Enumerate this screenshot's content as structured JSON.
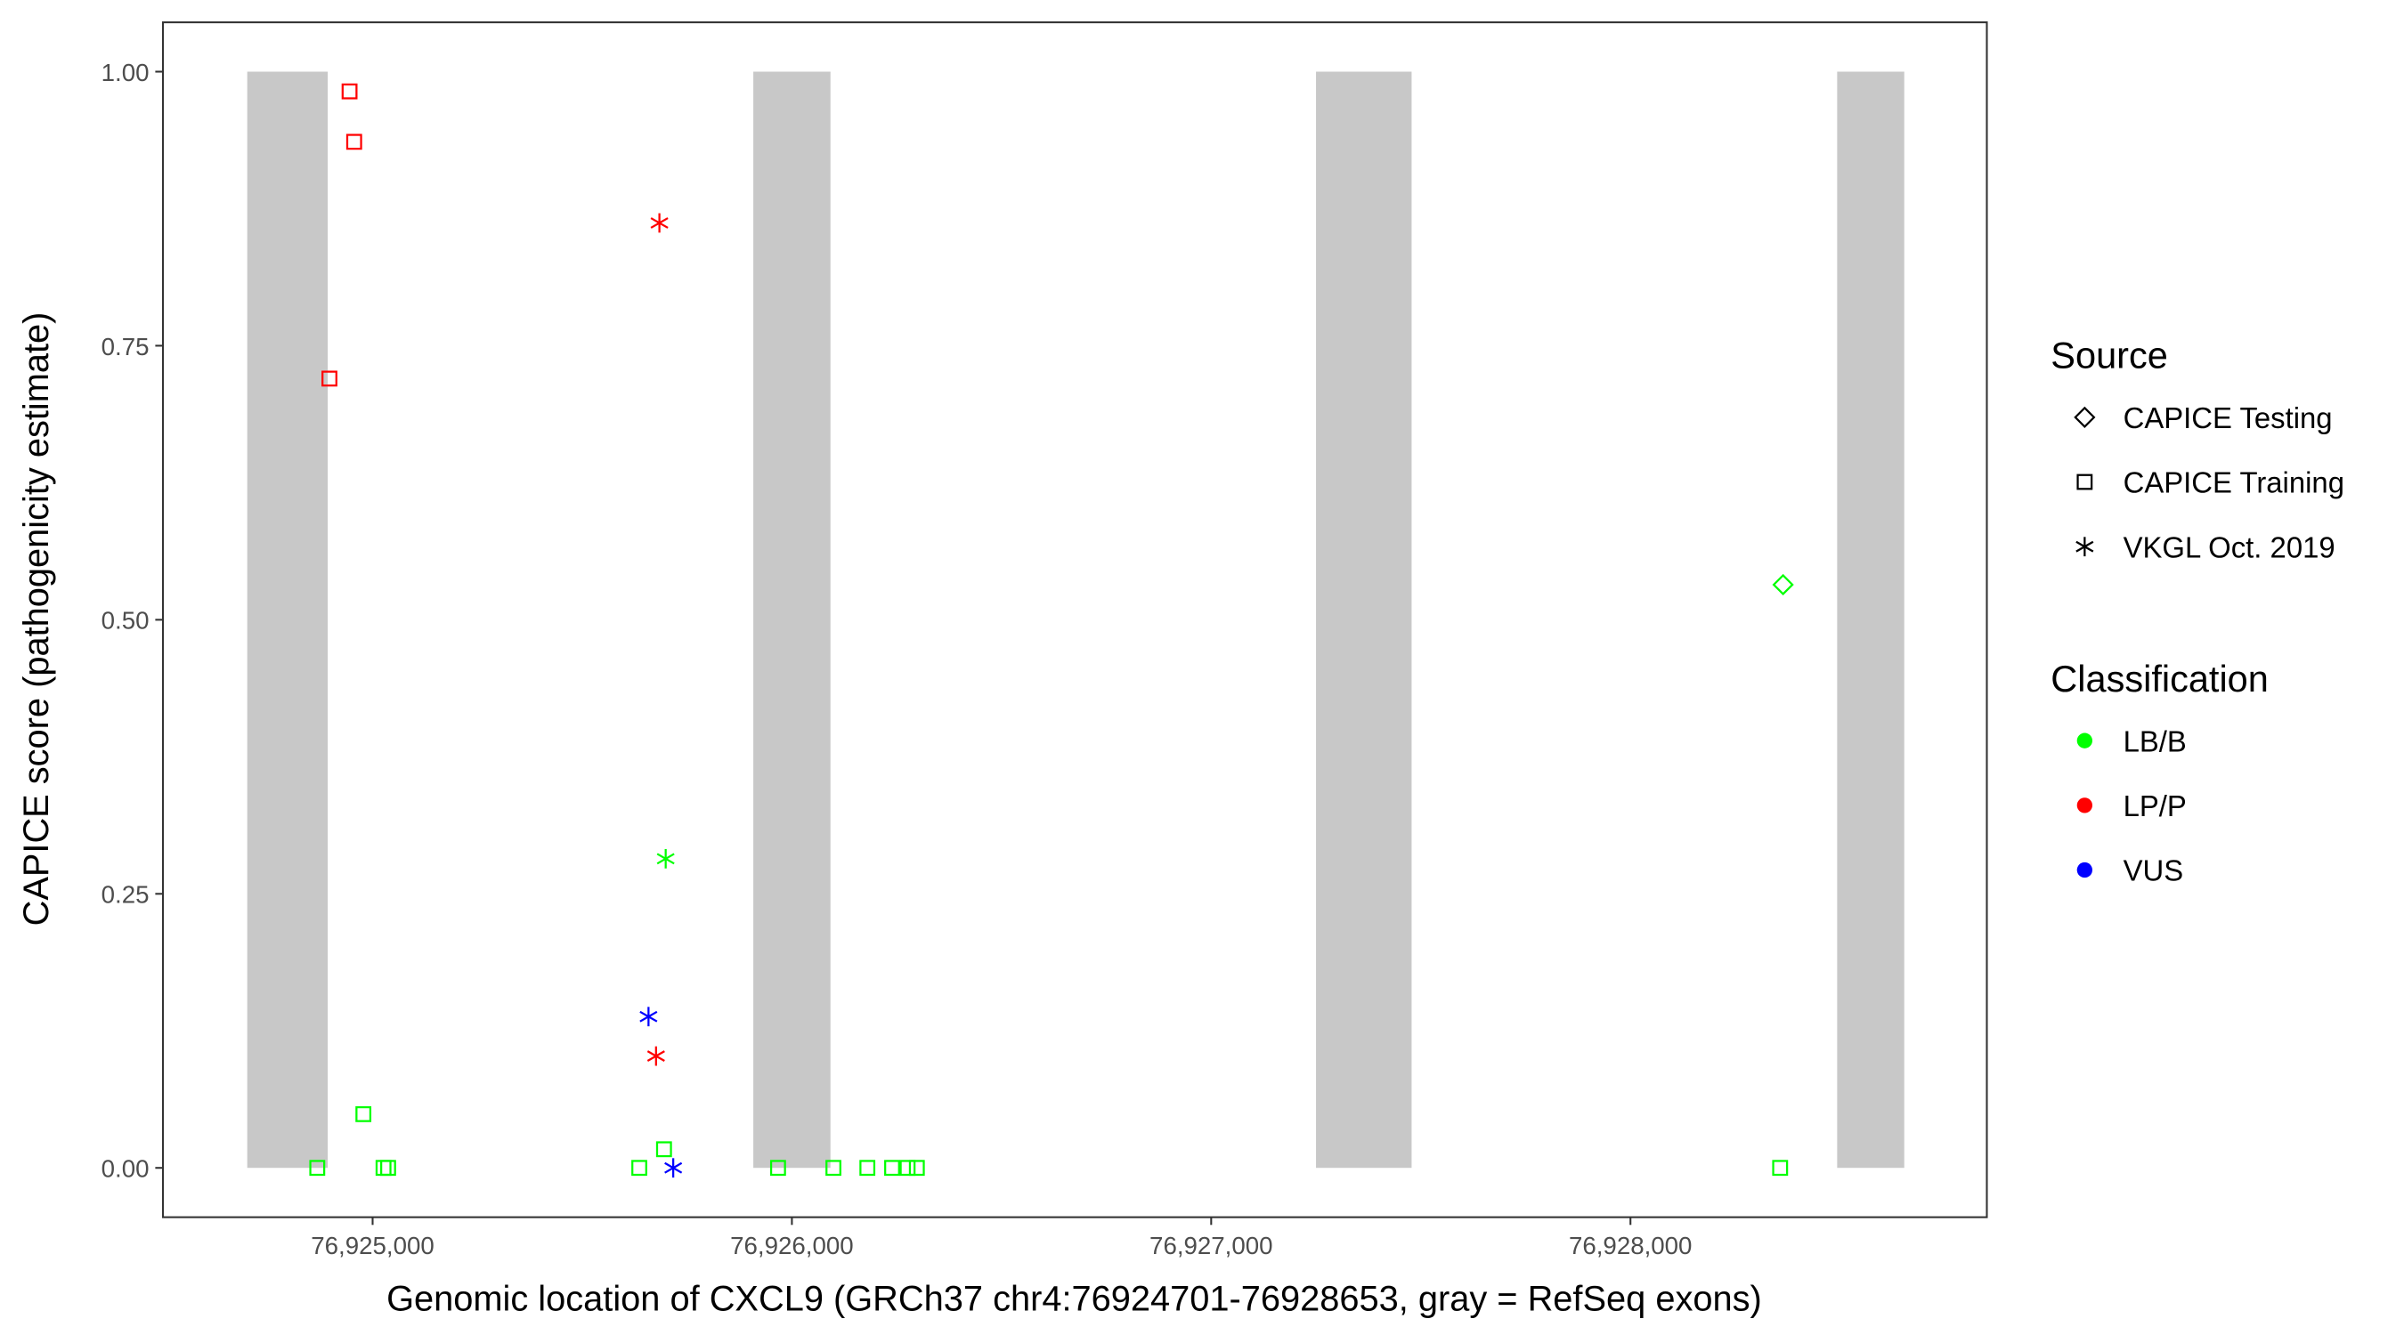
{
  "chart_data": {
    "type": "scatter",
    "xlabel": "Genomic location of CXCL9 (GRCh37 chr4:76924701-76928653, gray = RefSeq exons)",
    "ylabel": "CAPICE score (pathogenicity estimate)",
    "xlim": [
      76924500,
      76928850
    ],
    "ylim": [
      -0.045,
      1.045
    ],
    "x_ticks": [
      76925000,
      76926000,
      76927000,
      76928000
    ],
    "x_tick_labels": [
      "76,925,000",
      "76,926,000",
      "76,927,000",
      "76,928,000"
    ],
    "y_ticks": [
      0,
      0.25,
      0.5,
      0.75,
      1.0
    ],
    "y_tick_labels": [
      "0.00",
      "0.25",
      "0.50",
      "0.75",
      "1.00"
    ],
    "grid": false,
    "legend_position": "right",
    "exons": [
      {
        "start": 76924701,
        "end": 76924893
      },
      {
        "start": 76925908,
        "end": 76926092
      },
      {
        "start": 76927250,
        "end": 76927478
      },
      {
        "start": 76928493,
        "end": 76928653
      }
    ],
    "exon_color": "#c8c8c8",
    "legend": {
      "source_title": "Source",
      "source_items": [
        {
          "label": "CAPICE Testing",
          "shape": "diamond"
        },
        {
          "label": "CAPICE Training",
          "shape": "square"
        },
        {
          "label": "VKGL Oct. 2019",
          "shape": "asterisk"
        }
      ],
      "class_title": "Classification",
      "class_items": [
        {
          "label": "LB/B",
          "color": "#00ff00"
        },
        {
          "label": "LP/P",
          "color": "#ff0000"
        },
        {
          "label": "VUS",
          "color": "#0000ff"
        }
      ]
    },
    "points": [
      {
        "x": 76924945,
        "y": 0.982,
        "source": "CAPICE Training",
        "class": "LP/P"
      },
      {
        "x": 76924956,
        "y": 0.936,
        "source": "CAPICE Training",
        "class": "LP/P"
      },
      {
        "x": 76924897,
        "y": 0.72,
        "source": "CAPICE Training",
        "class": "LP/P"
      },
      {
        "x": 76925684,
        "y": 0.862,
        "source": "VKGL Oct. 2019",
        "class": "LP/P"
      },
      {
        "x": 76925676,
        "y": 0.102,
        "source": "VKGL Oct. 2019",
        "class": "LP/P"
      },
      {
        "x": 76925699,
        "y": 0.282,
        "source": "VKGL Oct. 2019",
        "class": "LB/B"
      },
      {
        "x": 76925658,
        "y": 0.138,
        "source": "VKGL Oct. 2019",
        "class": "VUS"
      },
      {
        "x": 76925717,
        "y": 0.0,
        "source": "VKGL Oct. 2019",
        "class": "VUS"
      },
      {
        "x": 76924868,
        "y": 0.0,
        "source": "CAPICE Training",
        "class": "LB/B"
      },
      {
        "x": 76924978,
        "y": 0.049,
        "source": "CAPICE Training",
        "class": "LB/B"
      },
      {
        "x": 76925026,
        "y": 0.0,
        "source": "CAPICE Training",
        "class": "LB/B"
      },
      {
        "x": 76925037,
        "y": 0.0,
        "source": "CAPICE Training",
        "class": "LB/B"
      },
      {
        "x": 76925636,
        "y": 0.0,
        "source": "CAPICE Training",
        "class": "LB/B"
      },
      {
        "x": 76925695,
        "y": 0.017,
        "source": "CAPICE Training",
        "class": "LB/B"
      },
      {
        "x": 76925967,
        "y": 0.0,
        "source": "CAPICE Training",
        "class": "LB/B"
      },
      {
        "x": 76926099,
        "y": 0.0,
        "source": "CAPICE Training",
        "class": "LB/B"
      },
      {
        "x": 76926180,
        "y": 0.0,
        "source": "CAPICE Training",
        "class": "LB/B"
      },
      {
        "x": 76926239,
        "y": 0.0,
        "source": "CAPICE Training",
        "class": "LB/B"
      },
      {
        "x": 76926276,
        "y": 0.0,
        "source": "CAPICE Training",
        "class": "LB/B"
      },
      {
        "x": 76926298,
        "y": 0.0,
        "source": "CAPICE Training",
        "class": "LB/B"
      },
      {
        "x": 76928357,
        "y": 0.0,
        "source": "CAPICE Training",
        "class": "LB/B"
      },
      {
        "x": 76928364,
        "y": 0.532,
        "source": "CAPICE Testing",
        "class": "LB/B"
      }
    ]
  }
}
